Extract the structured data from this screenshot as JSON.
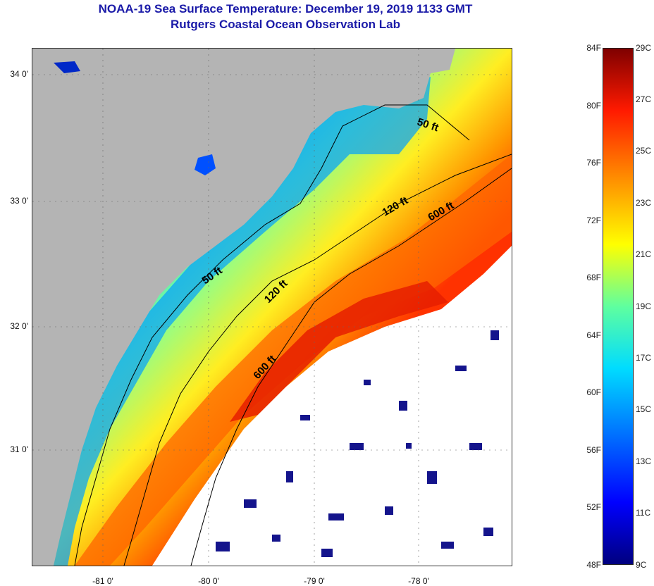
{
  "title": "NOAA-19 Sea Surface Temperature:  December 19, 2019 1133 GMT",
  "subtitle": "Rutgers Coastal Ocean Observation Lab",
  "y_labels": [
    "34 0'",
    "33 0'",
    "32 0'",
    "31 0'"
  ],
  "x_labels": [
    "-81 0'",
    "-80 0'",
    "-79 0'",
    "-78 0'"
  ],
  "contour_labels": [
    "50 ft",
    "50 ft",
    "120 ft",
    "120 ft",
    "600 ft",
    "600 ft"
  ],
  "colorbar": {
    "fahrenheit": [
      "84F",
      "80F",
      "76F",
      "72F",
      "68F",
      "64F",
      "60F",
      "56F",
      "52F",
      "48F"
    ],
    "celsius": [
      "29C",
      "27C",
      "25C",
      "23C",
      "21C",
      "19C",
      "17C",
      "15C",
      "13C",
      "11C",
      "9C"
    ]
  },
  "colors": {
    "land": "#b4b4b4",
    "title": "#1a1aa8",
    "cold": "#0000c8",
    "cool": "#00c8ff",
    "mild": "#c8ff50",
    "warm": "#ff9600",
    "hot": "#e61e00",
    "cloud": "#ffffff"
  }
}
